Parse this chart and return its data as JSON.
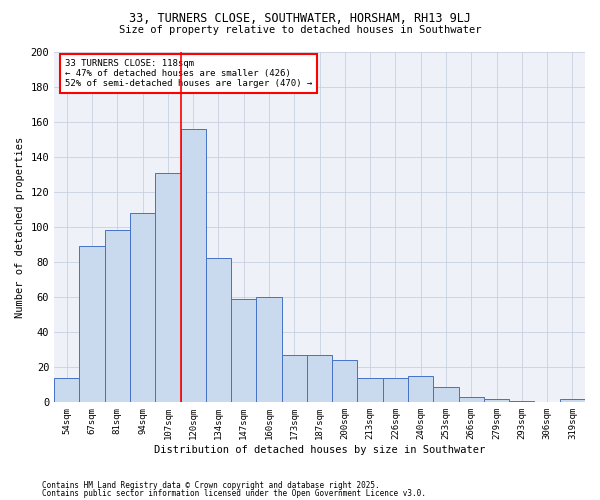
{
  "title1": "33, TURNERS CLOSE, SOUTHWATER, HORSHAM, RH13 9LJ",
  "title2": "Size of property relative to detached houses in Southwater",
  "xlabel": "Distribution of detached houses by size in Southwater",
  "ylabel": "Number of detached properties",
  "categories": [
    "54sqm",
    "67sqm",
    "81sqm",
    "94sqm",
    "107sqm",
    "120sqm",
    "134sqm",
    "147sqm",
    "160sqm",
    "173sqm",
    "187sqm",
    "200sqm",
    "213sqm",
    "226sqm",
    "240sqm",
    "253sqm",
    "266sqm",
    "279sqm",
    "293sqm",
    "306sqm",
    "319sqm"
  ],
  "values": [
    14,
    89,
    98,
    108,
    131,
    156,
    82,
    59,
    60,
    27,
    27,
    24,
    14,
    14,
    15,
    9,
    3,
    2,
    1,
    0,
    2
  ],
  "bar_color": "#c9d9ee",
  "bar_edge_color": "#4472c4",
  "vline_x": 4.5,
  "vline_color": "red",
  "annotation_text": "33 TURNERS CLOSE: 118sqm\n← 47% of detached houses are smaller (426)\n52% of semi-detached houses are larger (470) →",
  "annotation_box_color": "red",
  "ylim": [
    0,
    200
  ],
  "yticks": [
    0,
    20,
    40,
    60,
    80,
    100,
    120,
    140,
    160,
    180,
    200
  ],
  "grid_color": "#c8d0e0",
  "background_color": "#eef2f8",
  "footer1": "Contains HM Land Registry data © Crown copyright and database right 2025.",
  "footer2": "Contains public sector information licensed under the Open Government Licence v3.0."
}
